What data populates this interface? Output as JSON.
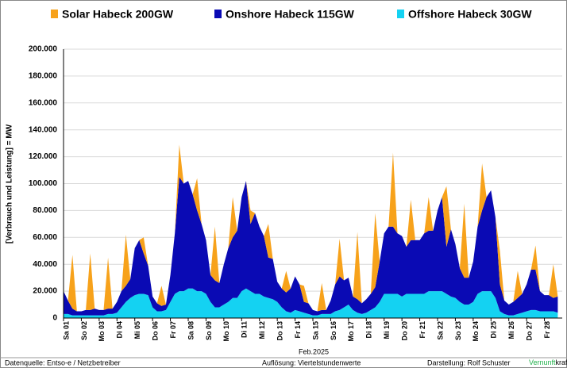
{
  "chart_data": {
    "type": "stacked_area",
    "y_label": "[Verbrauch und Leistung] = MW",
    "x_label": "Feb.2025",
    "footer": {
      "source": "Datenquelle: Entso-e  / Netzbetreiber",
      "resolution": "Auflösung: Viertelstundenwerte",
      "author": "Darstellung:  Rolf Schuster",
      "brand_a": "Vernunft",
      "brand_b": "kraft"
    },
    "grid": true,
    "ylim": [
      0,
      200000
    ],
    "yticks": [
      0,
      {
        "value": 20000,
        "label": "20.000"
      },
      {
        "value": 40000,
        "label": "40.000"
      },
      {
        "value": 60000,
        "label": "60.000"
      },
      {
        "value": 80000,
        "label": "80.000"
      },
      {
        "value": 100000,
        "label": "100.000"
      },
      {
        "value": 120000,
        "label": "120.000"
      },
      {
        "value": 140000,
        "label": "140.000"
      },
      {
        "value": 160000,
        "label": "160.000"
      },
      {
        "value": 180000,
        "label": "180.000"
      },
      {
        "value": 200000,
        "label": "200.000"
      }
    ],
    "xlim": [
      0,
      28
    ],
    "xticks": [
      {
        "value": 0,
        "label": "Sa 01"
      },
      {
        "value": 1,
        "label": "So 02"
      },
      {
        "value": 2,
        "label": "Mo 03"
      },
      {
        "value": 3,
        "label": "Di 04"
      },
      {
        "value": 4,
        "label": "Mi 05"
      },
      {
        "value": 5,
        "label": "Do 06"
      },
      {
        "value": 6,
        "label": "Fr 07"
      },
      {
        "value": 7,
        "label": "Sa 08"
      },
      {
        "value": 8,
        "label": "So 09"
      },
      {
        "value": 9,
        "label": "Mo 10"
      },
      {
        "value": 10,
        "label": "Di 11"
      },
      {
        "value": 11,
        "label": "Mi 12"
      },
      {
        "value": 12,
        "label": "Do 13"
      },
      {
        "value": 13,
        "label": "Fr 14"
      },
      {
        "value": 14,
        "label": "Sa 15"
      },
      {
        "value": 15,
        "label": "So 16"
      },
      {
        "value": 16,
        "label": "Mo 17"
      },
      {
        "value": 17,
        "label": "Di 18"
      },
      {
        "value": 18,
        "label": "Mi 19"
      },
      {
        "value": 19,
        "label": "Do 20"
      },
      {
        "value": 20,
        "label": "Fr 21"
      },
      {
        "value": 21,
        "label": "Sa 22"
      },
      {
        "value": 22,
        "label": "So 23"
      },
      {
        "value": 23,
        "label": "Mo 24"
      },
      {
        "value": 24,
        "label": "Di 25"
      },
      {
        "value": 25,
        "label": "Mi 26"
      },
      {
        "value": 26,
        "label": "Do 27"
      },
      {
        "value": 27,
        "label": "Fr 28"
      }
    ],
    "x": [
      0,
      0.25,
      0.5,
      0.75,
      1,
      1.25,
      1.5,
      1.75,
      2,
      2.25,
      2.5,
      2.75,
      3,
      3.25,
      3.5,
      3.75,
      4,
      4.25,
      4.5,
      4.75,
      5,
      5.25,
      5.5,
      5.75,
      6,
      6.25,
      6.5,
      6.75,
      7,
      7.25,
      7.5,
      7.75,
      8,
      8.25,
      8.5,
      8.75,
      9,
      9.25,
      9.5,
      9.75,
      10,
      10.25,
      10.5,
      10.75,
      11,
      11.25,
      11.5,
      11.75,
      12,
      12.25,
      12.5,
      12.75,
      13,
      13.25,
      13.5,
      13.75,
      14,
      14.25,
      14.5,
      14.75,
      15,
      15.25,
      15.5,
      15.75,
      16,
      16.25,
      16.5,
      16.75,
      17,
      17.25,
      17.5,
      17.75,
      18,
      18.25,
      18.5,
      18.75,
      19,
      19.25,
      19.5,
      19.75,
      20,
      20.25,
      20.5,
      20.75,
      21,
      21.25,
      21.5,
      21.75,
      22,
      22.25,
      22.5,
      22.75,
      23,
      23.25,
      23.5,
      23.75,
      24,
      24.25,
      24.5,
      24.75,
      25,
      25.25,
      25.5,
      25.75,
      26,
      26.25,
      26.5,
      26.75,
      27,
      27.25,
      27.5,
      27.75
    ],
    "series": [
      {
        "name": "Offshore Habeck 30GW",
        "color": "#14d2f2",
        "values": [
          3000,
          3000,
          2000,
          2000,
          2000,
          2000,
          2000,
          2000,
          2000,
          2000,
          3000,
          3000,
          4000,
          8000,
          12000,
          15000,
          17000,
          18000,
          18000,
          17000,
          8000,
          5000,
          5000,
          6000,
          12000,
          18000,
          20000,
          20000,
          22000,
          22000,
          20000,
          20000,
          18000,
          12000,
          8000,
          8000,
          10000,
          12000,
          15000,
          15000,
          20000,
          22000,
          20000,
          18000,
          18000,
          16000,
          15000,
          14000,
          12000,
          8000,
          5000,
          4000,
          6000,
          5000,
          4000,
          3000,
          2000,
          2000,
          3000,
          3000,
          3000,
          5000,
          6000,
          8000,
          10000,
          6000,
          4000,
          3000,
          4000,
          6000,
          8000,
          12000,
          18000,
          18000,
          18000,
          18000,
          16000,
          18000,
          18000,
          18000,
          18000,
          18000,
          20000,
          20000,
          20000,
          20000,
          18000,
          16000,
          15000,
          12000,
          10000,
          10000,
          12000,
          18000,
          20000,
          20000,
          20000,
          15000,
          5000,
          3000,
          2000,
          2000,
          3000,
          4000,
          5000,
          6000,
          6000,
          5000,
          5000,
          5000,
          5000,
          4000
        ]
      },
      {
        "name": "Onshore Habeck 115GW",
        "color": "#0a0ab4",
        "values": [
          17000,
          10000,
          5000,
          3000,
          3000,
          4000,
          4000,
          5000,
          4000,
          4000,
          4000,
          4000,
          8000,
          12000,
          12000,
          14000,
          35000,
          40000,
          30000,
          22000,
          8000,
          6000,
          4000,
          4000,
          20000,
          45000,
          85000,
          80000,
          80000,
          70000,
          60000,
          50000,
          40000,
          20000,
          20000,
          18000,
          30000,
          40000,
          45000,
          50000,
          70000,
          80000,
          50000,
          60000,
          50000,
          45000,
          30000,
          30000,
          15000,
          14000,
          14000,
          18000,
          25000,
          20000,
          8000,
          8000,
          4000,
          3000,
          3000,
          3000,
          10000,
          20000,
          25000,
          20000,
          20000,
          10000,
          10000,
          8000,
          10000,
          12000,
          15000,
          30000,
          45000,
          50000,
          50000,
          45000,
          45000,
          35000,
          40000,
          40000,
          40000,
          45000,
          45000,
          45000,
          60000,
          70000,
          35000,
          50000,
          40000,
          25000,
          20000,
          20000,
          30000,
          50000,
          60000,
          70000,
          75000,
          60000,
          20000,
          10000,
          8000,
          10000,
          12000,
          14000,
          20000,
          30000,
          30000,
          15000,
          12000,
          12000,
          10000,
          12000
        ]
      },
      {
        "name": "Solar Habeck 200GW",
        "color": "#f7a21b",
        "values": [
          0,
          0,
          40000,
          0,
          0,
          0,
          42000,
          0,
          0,
          0,
          38000,
          0,
          0,
          0,
          38000,
          0,
          0,
          0,
          12000,
          0,
          0,
          0,
          15000,
          0,
          0,
          0,
          24000,
          0,
          0,
          0,
          24000,
          0,
          0,
          0,
          40000,
          0,
          0,
          0,
          30000,
          0,
          0,
          0,
          10000,
          0,
          0,
          0,
          25000,
          0,
          0,
          0,
          16000,
          0,
          0,
          0,
          12000,
          0,
          0,
          0,
          20000,
          0,
          0,
          0,
          28000,
          0,
          0,
          0,
          50000,
          0,
          0,
          0,
          55000,
          0,
          0,
          0,
          55000,
          0,
          0,
          0,
          30000,
          0,
          0,
          0,
          25000,
          0,
          0,
          0,
          45000,
          0,
          0,
          0,
          55000,
          0,
          0,
          0,
          35000,
          0,
          0,
          0,
          25000,
          0,
          0,
          0,
          20000,
          0,
          0,
          0,
          18000,
          0,
          0,
          0,
          25000,
          0
        ]
      }
    ]
  }
}
